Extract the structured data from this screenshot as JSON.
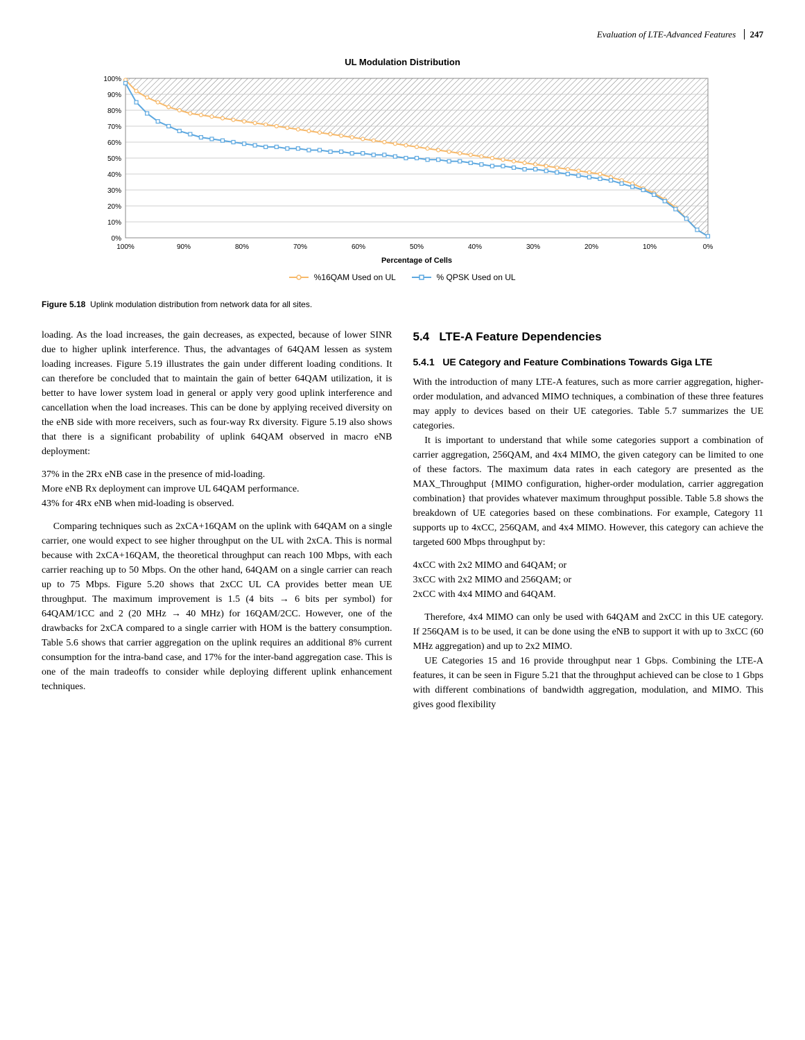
{
  "header": {
    "running_title": "Evaluation of LTE-Advanced Features",
    "page_number": "247"
  },
  "chart": {
    "type": "line-area",
    "title": "UL Modulation Distribution",
    "xlabel": "Percentage of Cells",
    "ylabel": "",
    "x_ticks": [
      "100%",
      "90%",
      "80%",
      "70%",
      "60%",
      "50%",
      "40%",
      "30%",
      "20%",
      "10%",
      "0%"
    ],
    "y_ticks": [
      "0%",
      "10%",
      "20%",
      "30%",
      "40%",
      "50%",
      "60%",
      "70%",
      "80%",
      "90%",
      "100%"
    ],
    "xlim": [
      0,
      100
    ],
    "ylim": [
      0,
      100
    ],
    "background_color": "#ffffff",
    "grid_color": "#bfbfbf",
    "plot_border_color": "#888888",
    "hatch_color": "#808080",
    "series": [
      {
        "name": "%16QAM Used on UL",
        "color": "#f7b96a",
        "marker": "circle",
        "marker_fill": "#ffffff",
        "data_y_pct": [
          99,
          92,
          88,
          85,
          82,
          80,
          78,
          77,
          76,
          75,
          74,
          73,
          72,
          71,
          70,
          69,
          68,
          67,
          66,
          65,
          64,
          63,
          62,
          61,
          60,
          59,
          58,
          57,
          56,
          55,
          54,
          53,
          52,
          51,
          50,
          49,
          48,
          47,
          46,
          45,
          44,
          43,
          42,
          41,
          40,
          38,
          36,
          34,
          31,
          28,
          24,
          19,
          12,
          5,
          1
        ]
      },
      {
        "name": "% QPSK Used on UL",
        "color": "#5da8e0",
        "marker": "square",
        "marker_fill": "#ffffff",
        "data_y_pct": [
          97,
          85,
          78,
          73,
          70,
          67,
          65,
          63,
          62,
          61,
          60,
          59,
          58,
          57,
          57,
          56,
          56,
          55,
          55,
          54,
          54,
          53,
          53,
          52,
          52,
          51,
          50,
          50,
          49,
          49,
          48,
          48,
          47,
          46,
          45,
          45,
          44,
          43,
          43,
          42,
          41,
          40,
          39,
          38,
          37,
          36,
          34,
          32,
          30,
          27,
          23,
          18,
          12,
          5,
          1
        ]
      }
    ],
    "legend": {
      "items": [
        {
          "marker": "circle-line",
          "color": "#f7b96a",
          "label": "%16QAM Used on UL"
        },
        {
          "marker": "square-line",
          "color": "#5da8e0",
          "label": "% QPSK Used on UL"
        }
      ]
    },
    "title_fontsize": 13,
    "axis_fontsize": 11,
    "tick_fontsize": 10
  },
  "figure_caption": {
    "label": "Figure 5.18",
    "text": "Uplink modulation distribution from network data for all sites."
  },
  "left_column": {
    "p1": "loading. As the load increases, the gain decreases, as expected, because of lower SINR due to higher uplink interference. Thus, the advantages of 64QAM lessen as system loading increases. Figure 5.19 illustrates the gain under different loading conditions. It can therefore be concluded that to maintain the gain of better 64QAM utilization, it is better to have lower system load in general or apply very good uplink interference and cancellation when the load increases. This can be done by applying received diversity on the eNB side with more receivers, such as four-way Rx diversity. Figure 5.19 also shows that there is a significant probability of uplink 64QAM observed in macro eNB deployment:",
    "list1_a": "37% in the 2Rx eNB case in the presence of mid-loading.",
    "list1_b": "More eNB Rx deployment can improve UL 64QAM performance.",
    "list1_c": "43% for 4Rx eNB when mid-loading is observed.",
    "p2": "Comparing techniques such as 2xCA+16QAM on the uplink with 64QAM on a single carrier, one would expect to see higher throughput on the UL with 2xCA. This is normal because with 2xCA+16QAM, the theoretical throughput can reach 100 Mbps, with each carrier reaching up to 50 Mbps. On the other hand, 64QAM on a single carrier can reach up to 75 Mbps. Figure 5.20 shows that 2xCC UL CA provides better mean UE throughput. The maximum improvement is 1.5 (4 bits → 6 bits per symbol) for 64QAM/1CC and 2 (20 MHz → 40 MHz) for 16QAM/2CC. However, one of the drawbacks for 2xCA compared to a single carrier with HOM is the battery consumption. Table 5.6 shows that carrier aggregation on the uplink requires an additional 8% current consumption for the intra-band case, and 17% for the inter-band aggregation case. This is one of the main tradeoffs to consider while deploying different uplink enhancement techniques."
  },
  "right_column": {
    "section_number": "5.4",
    "section_title": "LTE-A Feature Dependencies",
    "subsection_number": "5.4.1",
    "subsection_title": "UE Category and Feature Combinations Towards Giga LTE",
    "p1": "With the introduction of many LTE-A features, such as more carrier aggregation, higher-order modulation, and advanced MIMO techniques, a combination of these three features may apply to devices based on their UE categories. Table 5.7 summarizes the UE categories.",
    "p2": "It is important to understand that while some categories support a combination of carrier aggregation, 256QAM, and 4x4 MIMO, the given category can be limited to one of these factors. The maximum data rates in each category are presented as the MAX_Throughput {MIMO configuration, higher-order modulation, carrier aggregation combination} that provides whatever maximum throughput possible. Table 5.8 shows the breakdown of UE categories based on these combinations. For example, Category 11 supports up to 4xCC, 256QAM, and 4x4 MIMO. However, this category can achieve the targeted 600 Mbps throughput by:",
    "list_a": "4xCC with 2x2 MIMO and 64QAM; or",
    "list_b": "3xCC with 2x2 MIMO and 256QAM; or",
    "list_c": "2xCC with 4x4 MIMO and 64QAM.",
    "p3": "Therefore, 4x4 MIMO can only be used with 64QAM and 2xCC in this UE category. If 256QAM is to be used, it can be done using the eNB to support it with up to 3xCC (60 MHz aggregation) and up to 2x2 MIMO.",
    "p4": "UE Categories 15 and 16 provide throughput near 1 Gbps. Combining the LTE-A features, it can be seen in Figure 5.21 that the throughput achieved can be close to 1 Gbps with different combinations of bandwidth aggregation, modulation, and MIMO. This gives good flexibility"
  }
}
